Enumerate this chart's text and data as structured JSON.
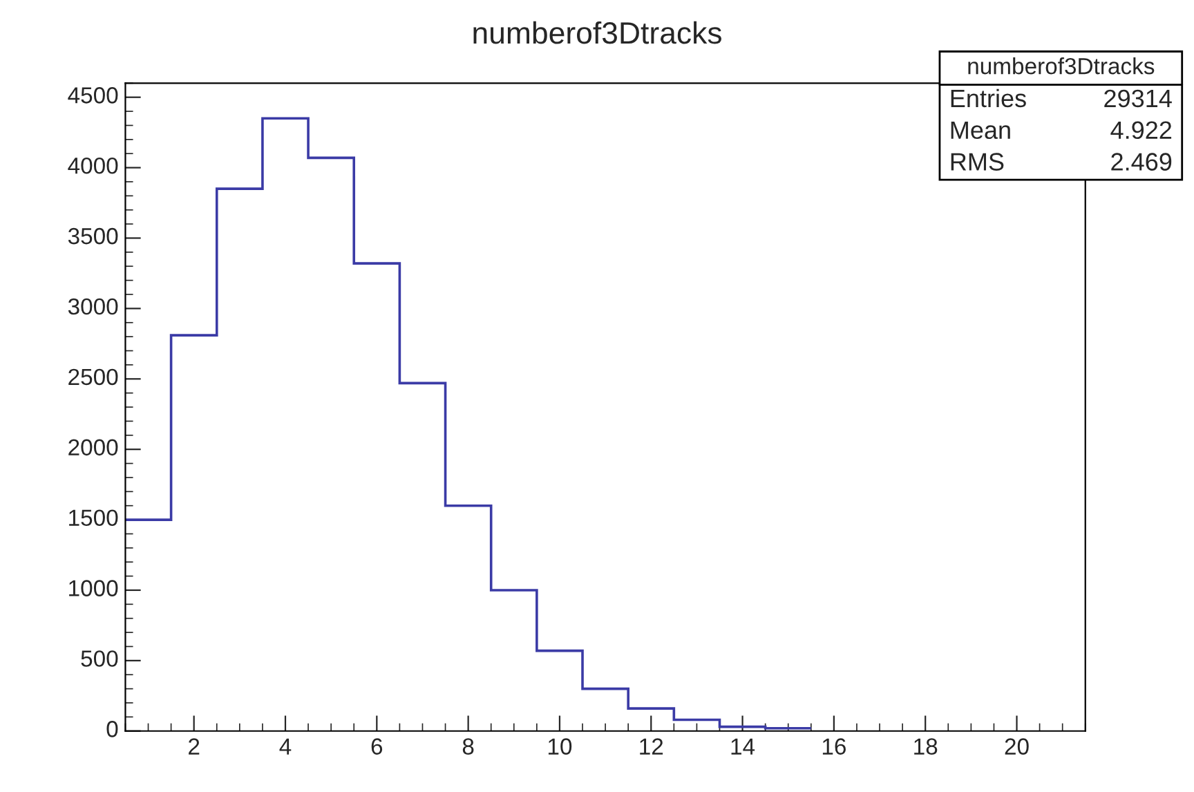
{
  "chart_data": {
    "type": "histogram",
    "title": "numberof3Dtracks",
    "bins": [
      0.5,
      1.5,
      2.5,
      3.5,
      4.5,
      5.5,
      6.5,
      7.5,
      8.5,
      9.5,
      10.5,
      11.5,
      12.5,
      13.5,
      14.5,
      15.5
    ],
    "values": [
      1500,
      2810,
      3850,
      4350,
      4070,
      3320,
      2470,
      1600,
      1000,
      570,
      300,
      160,
      80,
      30,
      20
    ],
    "color": "#3b3ba6",
    "xlim": [
      0.5,
      21.5
    ],
    "xticks": [
      2,
      4,
      6,
      8,
      10,
      12,
      14,
      16,
      18,
      20
    ],
    "ylim": [
      0,
      4600
    ],
    "yticks": [
      0,
      500,
      1000,
      1500,
      2000,
      2500,
      3000,
      3500,
      4000,
      4500
    ],
    "grid": false,
    "annotations": [
      "numberof3Dtracks",
      "Entries",
      "29314",
      "Mean",
      "4.922",
      "RMS",
      "2.469"
    ]
  }
}
